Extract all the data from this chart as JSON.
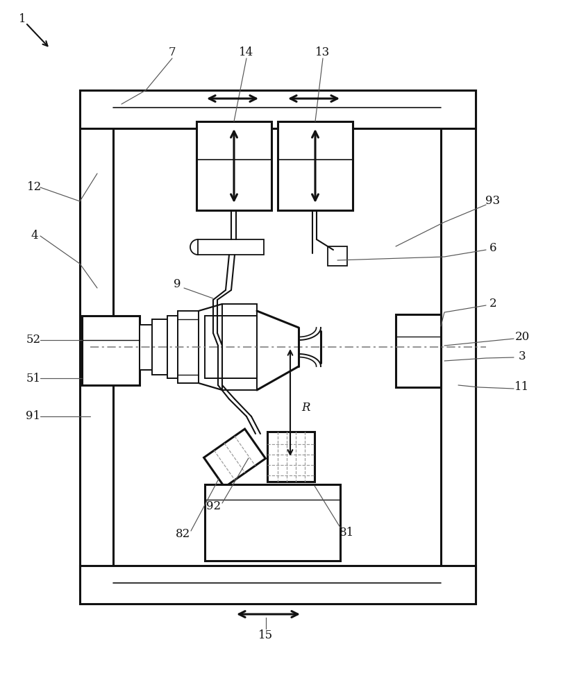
{
  "bg": "#ffffff",
  "lc": "#111111",
  "lc2": "#555555",
  "lw": 1.8,
  "lw2": 2.2,
  "lw_leader": 0.85,
  "fs": 12,
  "figsize": [
    8.08,
    10.0
  ],
  "dpi": 100
}
